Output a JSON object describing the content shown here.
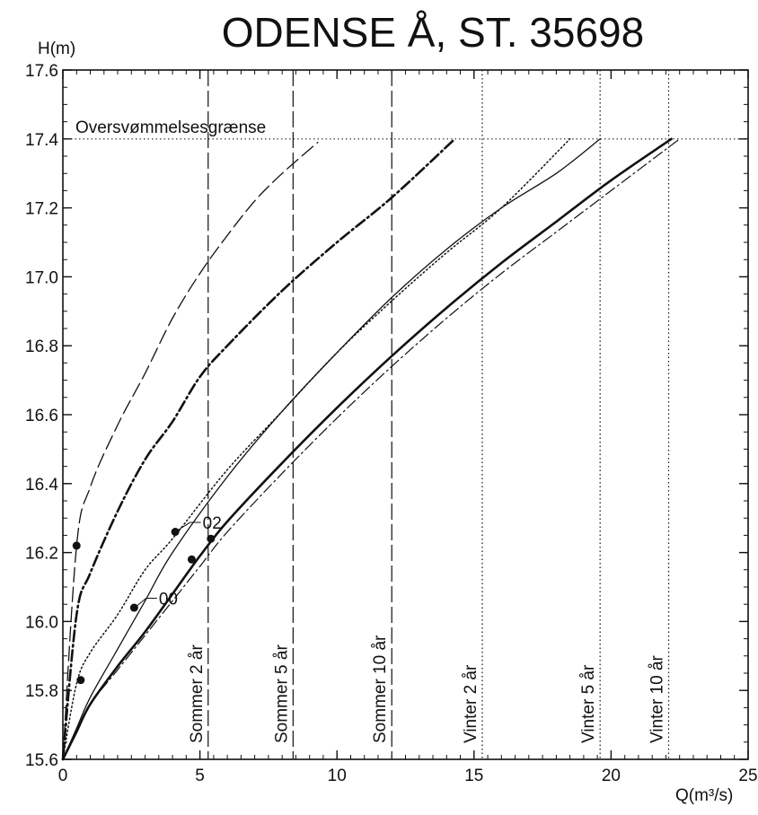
{
  "chart_data": {
    "type": "line",
    "title": "ODENSE Å, ST. 35698",
    "xlabel": "Q(m³/s)",
    "ylabel": "H(m)",
    "xlim": [
      0,
      25
    ],
    "ylim": [
      15.6,
      17.6
    ],
    "x_ticks": [
      0,
      5,
      10,
      15,
      20,
      25
    ],
    "y_ticks": [
      15.6,
      15.8,
      16.0,
      16.2,
      16.4,
      16.6,
      16.8,
      17.0,
      17.2,
      17.4,
      17.6
    ],
    "x_tick_labels": [
      "0",
      "5",
      "10",
      "15",
      "20",
      "25"
    ],
    "y_tick_labels": [
      "15.6",
      "15.8",
      "16.0",
      "16.2",
      "16.4",
      "16.6",
      "16.8",
      "17.0",
      "17.2",
      "17.4",
      "17.6"
    ],
    "grid": false,
    "flood_limit": {
      "label": "Oversvømmelsesgrænse",
      "y": 17.4
    },
    "reference_lines": [
      {
        "label": "Sommer 2 år",
        "x": 5.3,
        "style": "dashed"
      },
      {
        "label": "Sommer 5 år",
        "x": 8.4,
        "style": "dashed"
      },
      {
        "label": "Sommer 10 år",
        "x": 12.0,
        "style": "dashed"
      },
      {
        "label": "Vinter 2 år",
        "x": 15.3,
        "style": "dotted"
      },
      {
        "label": "Vinter 5 år",
        "x": 19.6,
        "style": "dotted"
      },
      {
        "label": "Vinter 10 år",
        "x": 22.1,
        "style": "dotted"
      }
    ],
    "series": [
      {
        "style": "long-dash",
        "points": [
          [
            0,
            15.6
          ],
          [
            0.5,
            16.22
          ],
          [
            1,
            16.39
          ],
          [
            2,
            16.57
          ],
          [
            3,
            16.72
          ],
          [
            4,
            16.88
          ],
          [
            5,
            17.01
          ],
          [
            6,
            17.12
          ],
          [
            7,
            17.22
          ],
          [
            8,
            17.3
          ],
          [
            9.3,
            17.39
          ]
        ]
      },
      {
        "style": "dash-dot-bold",
        "points": [
          [
            0,
            15.6
          ],
          [
            0.5,
            16.02
          ],
          [
            1,
            16.14
          ],
          [
            2,
            16.32
          ],
          [
            3,
            16.47
          ],
          [
            4,
            16.58
          ],
          [
            5,
            16.71
          ],
          [
            6,
            16.8
          ],
          [
            8,
            16.96
          ],
          [
            10,
            17.1
          ],
          [
            12,
            17.23
          ],
          [
            14.3,
            17.4
          ]
        ]
      },
      {
        "style": "dotted",
        "points": [
          [
            0,
            15.6
          ],
          [
            0.5,
            15.82
          ],
          [
            1,
            15.91
          ],
          [
            2,
            16.02
          ],
          [
            3,
            16.15
          ],
          [
            4,
            16.24
          ],
          [
            6,
            16.44
          ],
          [
            8,
            16.61
          ],
          [
            10,
            16.78
          ],
          [
            12,
            16.93
          ],
          [
            14,
            17.07
          ],
          [
            16,
            17.2
          ],
          [
            18.5,
            17.4
          ]
        ]
      },
      {
        "style": "solid-thin",
        "points": [
          [
            0,
            15.6
          ],
          [
            0.5,
            15.69
          ],
          [
            1,
            15.78
          ],
          [
            2,
            15.92
          ],
          [
            3,
            16.06
          ],
          [
            4,
            16.2
          ],
          [
            6,
            16.42
          ],
          [
            8,
            16.61
          ],
          [
            10,
            16.78
          ],
          [
            12,
            16.94
          ],
          [
            14,
            17.08
          ],
          [
            16,
            17.2
          ],
          [
            18,
            17.3
          ],
          [
            19.6,
            17.4
          ]
        ]
      },
      {
        "style": "solid-bold",
        "points": [
          [
            0,
            15.6
          ],
          [
            0.5,
            15.68
          ],
          [
            1,
            15.76
          ],
          [
            2,
            15.87
          ],
          [
            3,
            15.97
          ],
          [
            4,
            16.08
          ],
          [
            5,
            16.19
          ],
          [
            6,
            16.29
          ],
          [
            8,
            16.46
          ],
          [
            10,
            16.62
          ],
          [
            12,
            16.77
          ],
          [
            14,
            16.91
          ],
          [
            16,
            17.04
          ],
          [
            18,
            17.16
          ],
          [
            20,
            17.28
          ],
          [
            22.2,
            17.4
          ]
        ]
      },
      {
        "style": "dash-dot-thin",
        "points": [
          [
            0,
            15.6
          ],
          [
            0.5,
            15.68
          ],
          [
            1,
            15.76
          ],
          [
            2,
            15.86
          ],
          [
            3,
            15.96
          ],
          [
            4,
            16.06
          ],
          [
            5,
            16.16
          ],
          [
            6,
            16.26
          ],
          [
            8,
            16.43
          ],
          [
            10,
            16.59
          ],
          [
            12,
            16.74
          ],
          [
            14,
            16.88
          ],
          [
            16,
            17.01
          ],
          [
            18,
            17.13
          ],
          [
            20,
            17.25
          ],
          [
            22.5,
            17.4
          ]
        ]
      }
    ],
    "points": [
      [
        0.5,
        16.22
      ],
      [
        0.65,
        15.83
      ],
      [
        2.6,
        16.04
      ],
      [
        4.1,
        16.26
      ],
      [
        4.7,
        16.18
      ],
      [
        5.4,
        16.24
      ]
    ],
    "annotations": [
      {
        "text": "00",
        "x": 3.5,
        "y": 16.07,
        "anchor": [
          2.6,
          16.04
        ]
      },
      {
        "text": "02",
        "x": 5.1,
        "y": 16.29,
        "anchor": [
          4.1,
          16.26
        ]
      }
    ]
  }
}
